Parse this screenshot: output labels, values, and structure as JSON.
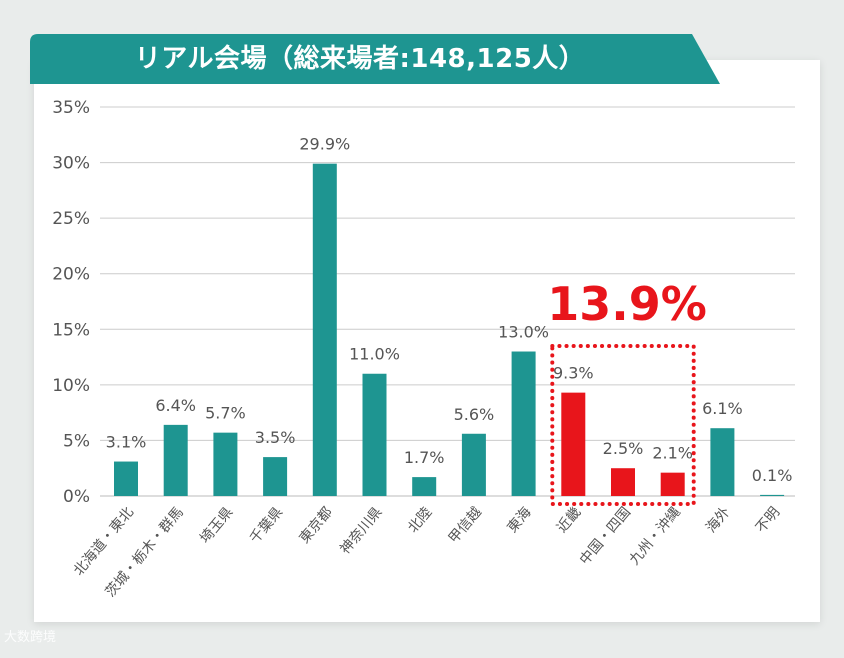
{
  "header": {
    "title": "リアル会場（総来場者:148,125人）"
  },
  "highlight": {
    "label": "13.9%",
    "color": "#e8151b"
  },
  "watermark": {
    "text": "大数跨境"
  },
  "colors": {
    "bar": "#1e9591",
    "highlight_bar": "#e8151b",
    "header_bg": "#1e9591",
    "grid": "#cccccc",
    "text": "#555555"
  },
  "chart_data": {
    "type": "bar",
    "title": "リアル会場（総来場者:148,125人）",
    "categories": [
      "北海道・東北",
      "茨城・栃木・群馬",
      "埼玉県",
      "千葉県",
      "東京都",
      "神奈川県",
      "北陸",
      "甲信越",
      "東海",
      "近畿",
      "中国・四国",
      "九州・沖縄",
      "海外",
      "不明"
    ],
    "values": [
      3.1,
      6.4,
      5.7,
      3.5,
      29.9,
      11.0,
      1.7,
      5.6,
      13.0,
      9.3,
      2.5,
      2.1,
      6.1,
      0.1
    ],
    "value_labels": [
      "3.1%",
      "6.4%",
      "5.7%",
      "3.5%",
      "29.9%",
      "11.0%",
      "1.7%",
      "5.6%",
      "13.0%",
      "9.3%",
      "2.5%",
      "2.1%",
      "6.1%",
      "0.1%"
    ],
    "highlighted": [
      false,
      false,
      false,
      false,
      false,
      false,
      false,
      false,
      false,
      true,
      true,
      true,
      false,
      false
    ],
    "yticks": [
      "0%",
      "5%",
      "10%",
      "15%",
      "20%",
      "25%",
      "30%",
      "35%"
    ],
    "ylim": [
      0,
      35
    ],
    "unit": "%",
    "grid": true,
    "xlabel": "",
    "ylabel": ""
  }
}
